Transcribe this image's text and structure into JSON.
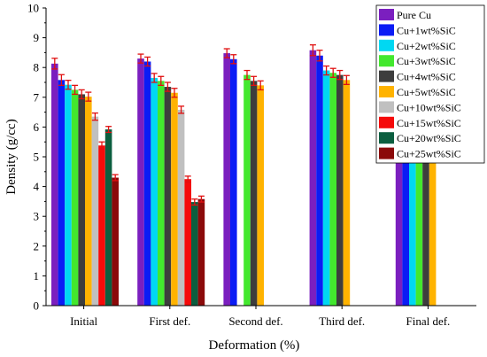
{
  "chart_data": {
    "type": "bar",
    "xlabel": "Deformation (%)",
    "ylabel": "Density (g/cc)",
    "ylim": [
      0,
      10
    ],
    "yticks": [
      0,
      1,
      2,
      3,
      4,
      5,
      6,
      7,
      8,
      9,
      10
    ],
    "categories": [
      "Initial",
      "First def.",
      "Second def.",
      "Third def.",
      "Final def."
    ],
    "legend_position": "top-right",
    "error_bar_color": "#e01010",
    "series": [
      {
        "name": "Pure Cu",
        "color": "#7b1fbf",
        "values": [
          8.13,
          8.3,
          8.48,
          8.58,
          8.7
        ],
        "errors": [
          0.18,
          0.15,
          0.15,
          0.18,
          0.18
        ]
      },
      {
        "name": "Cu+1wt%SiC",
        "color": "#0b1cf5",
        "values": [
          7.58,
          8.2,
          8.28,
          8.4,
          8.47
        ],
        "errors": [
          0.18,
          0.15,
          0.15,
          0.18,
          0.18
        ]
      },
      {
        "name": "Cu+2wt%SiC",
        "color": "#00d8f2",
        "values": [
          7.42,
          7.65,
          null,
          7.9,
          8.3
        ],
        "errors": [
          0.15,
          0.15,
          null,
          0.15,
          0.15
        ]
      },
      {
        "name": "Cu+3wt%SiC",
        "color": "#43e82e",
        "values": [
          7.25,
          7.55,
          7.75,
          7.82,
          8.15
        ],
        "errors": [
          0.15,
          0.15,
          0.15,
          0.15,
          0.15
        ]
      },
      {
        "name": "Cu+4wt%SiC",
        "color": "#3d3d3d",
        "values": [
          7.1,
          7.35,
          7.55,
          7.75,
          8.0
        ],
        "errors": [
          0.15,
          0.15,
          0.15,
          0.15,
          0.15
        ]
      },
      {
        "name": "Cu+5wt%SiC",
        "color": "#ffb300",
        "values": [
          7.02,
          7.15,
          7.4,
          7.58,
          7.65
        ],
        "errors": [
          0.15,
          0.15,
          0.15,
          0.15,
          0.15
        ]
      },
      {
        "name": "Cu+10wt%SiC",
        "color": "#c0c0c0",
        "values": [
          6.35,
          6.58,
          null,
          null,
          null
        ],
        "errors": [
          0.12,
          0.12,
          null,
          null,
          null
        ]
      },
      {
        "name": "Cu+15wt%SiC",
        "color": "#f50a0a",
        "values": [
          5.38,
          4.25,
          null,
          null,
          null
        ],
        "errors": [
          0.12,
          0.1,
          null,
          null,
          null
        ]
      },
      {
        "name": "Cu+20wt%SiC",
        "color": "#0b5e3f",
        "values": [
          5.92,
          3.48,
          null,
          null,
          null
        ],
        "errors": [
          0.1,
          0.1,
          null,
          null,
          null
        ]
      },
      {
        "name": "Cu+25wt%SiC",
        "color": "#8b0a0a",
        "values": [
          4.3,
          3.58,
          null,
          null,
          null
        ],
        "errors": [
          0.1,
          0.1,
          null,
          null,
          null
        ]
      }
    ]
  }
}
